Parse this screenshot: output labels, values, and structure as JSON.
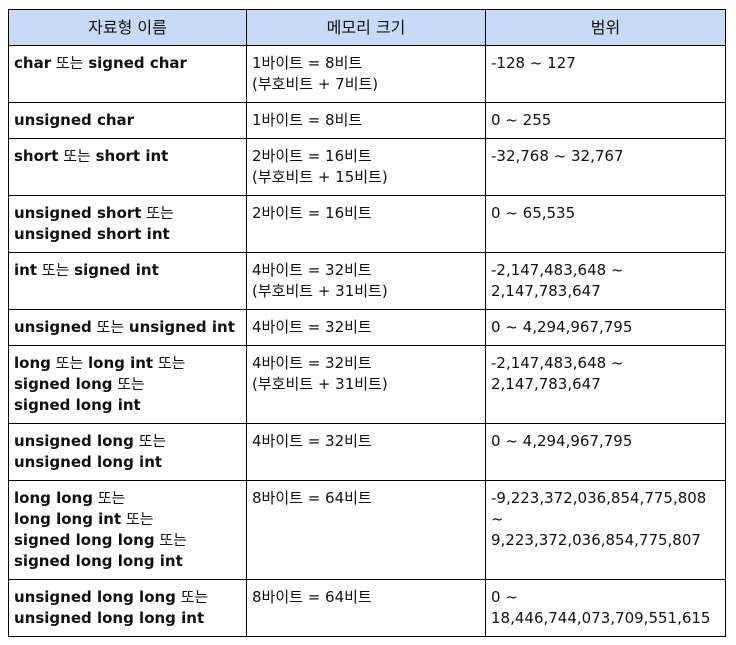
{
  "header": {
    "col1": "자료형 이름",
    "col2": "메모리 크기",
    "col3": "범위"
  },
  "rows": [
    {
      "name": [
        [
          "char",
          "b"
        ],
        [
          " 또는 ",
          "n"
        ],
        [
          "signed char",
          "b"
        ]
      ],
      "size": [
        "1바이트 = 8비트",
        "(부호비트 + 7비트)"
      ],
      "range": [
        "-128 ~ 127"
      ]
    },
    {
      "name": [
        [
          " unsigned char",
          "b"
        ]
      ],
      "size": [
        "1바이트 = 8비트"
      ],
      "range": [
        "0 ~ 255"
      ]
    },
    {
      "name": [
        [
          "short",
          "b"
        ],
        [
          " 또는 ",
          "n"
        ],
        [
          "short int",
          "b"
        ]
      ],
      "size": [
        "2바이트 = 16비트",
        "(부호비트 + 15비트)"
      ],
      "range": [
        "-32,768 ~ 32,767"
      ]
    },
    {
      "name": [
        [
          "unsigned short",
          "b"
        ],
        [
          " 또는",
          "n"
        ],
        [
          "\n",
          "n"
        ],
        [
          "unsigned short int",
          "b"
        ]
      ],
      "size": [
        "2바이트 = 16비트"
      ],
      "range": [
        "0 ~ 65,535"
      ]
    },
    {
      "name": [
        [
          "int",
          "b"
        ],
        [
          " 또는 ",
          "n"
        ],
        [
          "signed int",
          "b"
        ]
      ],
      "size": [
        "4바이트 = 32비트",
        "(부호비트 + 31비트)"
      ],
      "range": [
        "-2,147,483,648 ~",
        "2,147,783,647"
      ]
    },
    {
      "name": [
        [
          "unsigned",
          "b"
        ],
        [
          " 또는 ",
          "n"
        ],
        [
          "unsigned int",
          "b"
        ]
      ],
      "size": [
        "4바이트 = 32비트"
      ],
      "range": [
        "0 ~ 4,294,967,795"
      ]
    },
    {
      "name": [
        [
          "long",
          "b"
        ],
        [
          " 또는 ",
          "n"
        ],
        [
          "long int",
          "b"
        ],
        [
          " 또는",
          "n"
        ],
        [
          "\n",
          "n"
        ],
        [
          "signed long",
          "b"
        ],
        [
          " 또는",
          "n"
        ],
        [
          "\n",
          "n"
        ],
        [
          "signed long int",
          "b"
        ]
      ],
      "size": [
        "4바이트 = 32비트",
        "(부호비트 + 31비트)"
      ],
      "range": [
        "-2,147,483,648 ~",
        "2,147,783,647"
      ]
    },
    {
      "name": [
        [
          "unsigned long",
          "b"
        ],
        [
          " 또는",
          "n"
        ],
        [
          "\n",
          "n"
        ],
        [
          "unsigned long int",
          "b"
        ]
      ],
      "size": [
        "4바이트 = 32비트"
      ],
      "range": [
        "0 ~ 4,294,967,795"
      ]
    },
    {
      "name": [
        [
          "long long",
          "b"
        ],
        [
          " 또는",
          "n"
        ],
        [
          "\n",
          "n"
        ],
        [
          "long long int",
          "b"
        ],
        [
          " 또는",
          "n"
        ],
        [
          "\n",
          "n"
        ],
        [
          "signed long long",
          "b"
        ],
        [
          " 또는",
          "n"
        ],
        [
          "\n",
          "n"
        ],
        [
          "signed long long int",
          "b"
        ]
      ],
      "size": [
        "8바이트 = 64비트"
      ],
      "range": [
        "-9,223,372,036,854,775,808",
        "~",
        "9,223,372,036,854,775,807"
      ]
    },
    {
      "name": [
        [
          "unsigned long long",
          "b"
        ],
        [
          " 또는",
          "n"
        ],
        [
          "\n",
          "n"
        ],
        [
          "unsigned long long int",
          "b"
        ]
      ],
      "size": [
        "8바이트 = 64비트"
      ],
      "range": [
        "0 ~",
        "18,446,744,073,709,551,615"
      ]
    }
  ]
}
